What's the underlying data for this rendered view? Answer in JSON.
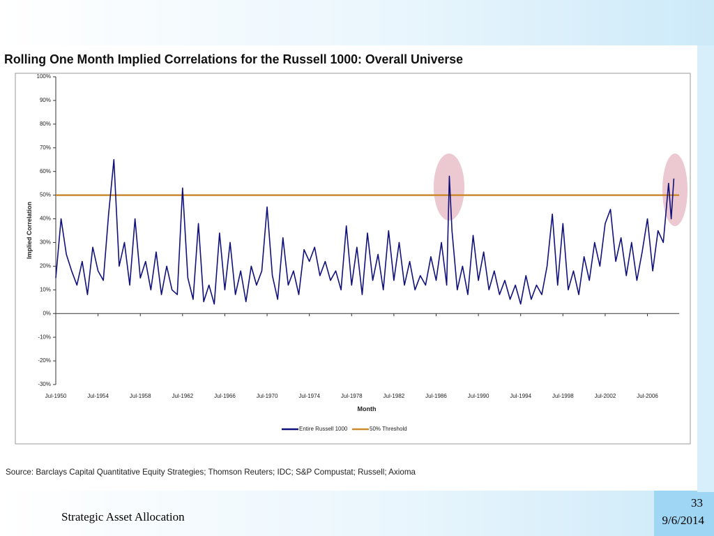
{
  "chart_data": {
    "type": "line",
    "title": "Rolling One Month Implied Correlations for the Russell 1000: Overall Universe",
    "xlabel": "Month",
    "ylabel": "Implied Correlation",
    "source": "Source: Barclays Capital Quantitative Equity Strategies; Thomson Reuters; IDC; S&P Compustat; Russell; Axioma",
    "xlim": [
      1950.5,
      2009.5
    ],
    "xticks": [
      {
        "value": 1950.5,
        "label": "Jul-1950"
      },
      {
        "value": 1954.5,
        "label": "Jul-1954"
      },
      {
        "value": 1958.5,
        "label": "Jul-1958"
      },
      {
        "value": 1962.5,
        "label": "Jul-1962"
      },
      {
        "value": 1966.5,
        "label": "Jul-1966"
      },
      {
        "value": 1970.5,
        "label": "Jul-1970"
      },
      {
        "value": 1974.5,
        "label": "Jul-1974"
      },
      {
        "value": 1978.5,
        "label": "Jul-1978"
      },
      {
        "value": 1982.5,
        "label": "Jul-1982"
      },
      {
        "value": 1986.5,
        "label": "Jul-1986"
      },
      {
        "value": 1990.5,
        "label": "Jul-1990"
      },
      {
        "value": 1994.5,
        "label": "Jul-1994"
      },
      {
        "value": 1998.5,
        "label": "Jul-1998"
      },
      {
        "value": 2002.5,
        "label": "Jul-2002"
      },
      {
        "value": 2006.5,
        "label": "Jul-2006"
      }
    ],
    "ylim": [
      -30,
      100
    ],
    "yticks": [
      {
        "value": 100,
        "label": "100%"
      },
      {
        "value": 90,
        "label": "90%"
      },
      {
        "value": 80,
        "label": "80%"
      },
      {
        "value": 70,
        "label": "70%"
      },
      {
        "value": 60,
        "label": "60%"
      },
      {
        "value": 50,
        "label": "50%"
      },
      {
        "value": 40,
        "label": "40%"
      },
      {
        "value": 30,
        "label": "30%"
      },
      {
        "value": 20,
        "label": "20%"
      },
      {
        "value": 10,
        "label": "10%"
      },
      {
        "value": 0,
        "label": "0%"
      },
      {
        "value": -10,
        "label": "-10%"
      },
      {
        "value": -20,
        "label": "-20%"
      },
      {
        "value": -30,
        "label": "-30%"
      }
    ],
    "x": [
      1950.5,
      1951,
      1951.5,
      1952,
      1952.5,
      1953,
      1953.5,
      1954,
      1954.5,
      1955,
      1955.5,
      1956,
      1956.5,
      1957,
      1957.5,
      1958,
      1958.5,
      1959,
      1959.5,
      1960,
      1960.5,
      1961,
      1961.5,
      1962,
      1962.5,
      1963,
      1963.5,
      1964,
      1964.5,
      1965,
      1965.5,
      1966,
      1966.5,
      1967,
      1967.5,
      1968,
      1968.5,
      1969,
      1969.5,
      1970,
      1970.5,
      1971,
      1971.5,
      1972,
      1972.5,
      1973,
      1973.5,
      1974,
      1974.5,
      1975,
      1975.5,
      1976,
      1976.5,
      1977,
      1977.5,
      1978,
      1978.5,
      1979,
      1979.5,
      1980,
      1980.5,
      1981,
      1981.5,
      1982,
      1982.5,
      1983,
      1983.5,
      1984,
      1984.5,
      1985,
      1985.5,
      1986,
      1986.5,
      1987,
      1987.5,
      1987.75,
      1988,
      1988.5,
      1989,
      1989.5,
      1990,
      1990.5,
      1991,
      1991.5,
      1992,
      1992.5,
      1993,
      1993.5,
      1994,
      1994.5,
      1995,
      1995.5,
      1996,
      1996.5,
      1997,
      1997.5,
      1998,
      1998.5,
      1999,
      1999.5,
      2000,
      2000.5,
      2001,
      2001.5,
      2002,
      2002.5,
      2003,
      2003.5,
      2004,
      2004.5,
      2005,
      2005.5,
      2006,
      2006.5,
      2007,
      2007.5,
      2008,
      2008.5,
      2008.75,
      2009
    ],
    "series": [
      {
        "name": "Entire Russell 1000",
        "color": "#10107a",
        "values": [
          15,
          40,
          25,
          18,
          12,
          22,
          8,
          28,
          18,
          14,
          42,
          65,
          20,
          30,
          12,
          40,
          15,
          22,
          10,
          26,
          8,
          20,
          10,
          8,
          53,
          15,
          6,
          38,
          5,
          12,
          4,
          34,
          10,
          30,
          8,
          18,
          5,
          20,
          12,
          18,
          45,
          16,
          6,
          32,
          12,
          18,
          8,
          27,
          22,
          28,
          16,
          22,
          14,
          18,
          10,
          37,
          12,
          28,
          8,
          34,
          14,
          25,
          10,
          35,
          14,
          30,
          12,
          22,
          10,
          16,
          12,
          24,
          14,
          30,
          12,
          58,
          35,
          10,
          20,
          8,
          33,
          14,
          26,
          10,
          18,
          8,
          14,
          6,
          12,
          4,
          16,
          6,
          12,
          8,
          20,
          42,
          12,
          38,
          10,
          18,
          8,
          24,
          14,
          30,
          20,
          38,
          44,
          22,
          32,
          16,
          30,
          14,
          26,
          40,
          18,
          35,
          30,
          55,
          40,
          57
        ]
      }
    ],
    "threshold": {
      "name": "50% Threshold",
      "value": 50,
      "color": "#cc8a2e"
    },
    "footer": {
      "left": "Strategic Asset Allocation",
      "page": "33",
      "date": "9/6/2014"
    }
  }
}
